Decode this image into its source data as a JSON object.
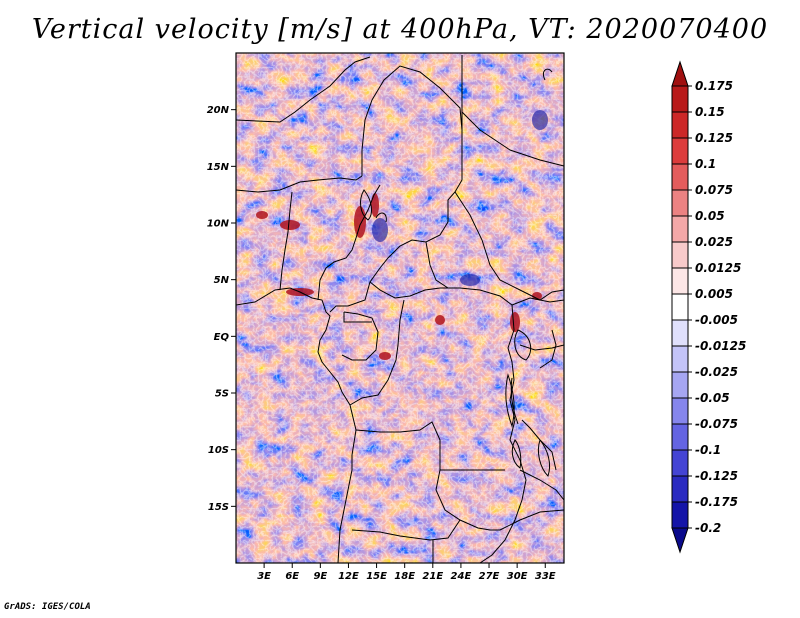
{
  "title": "Vertical velocity [m/s] at 400hPa, VT: 2020070400",
  "credit": "GrADS: IGES/COLA",
  "map": {
    "lon_range": [
      0,
      35
    ],
    "lat_range": [
      -20,
      25
    ],
    "lon_ticks": [
      {
        "value": 3,
        "label": "3E"
      },
      {
        "value": 6,
        "label": "6E"
      },
      {
        "value": 9,
        "label": "9E"
      },
      {
        "value": 12,
        "label": "12E"
      },
      {
        "value": 15,
        "label": "15E"
      },
      {
        "value": 18,
        "label": "18E"
      },
      {
        "value": 21,
        "label": "21E"
      },
      {
        "value": 24,
        "label": "24E"
      },
      {
        "value": 27,
        "label": "27E"
      },
      {
        "value": 30,
        "label": "30E"
      },
      {
        "value": 33,
        "label": "33E"
      }
    ],
    "lat_ticks": [
      {
        "value": 20,
        "label": "20N"
      },
      {
        "value": 15,
        "label": "15N"
      },
      {
        "value": 10,
        "label": "10N"
      },
      {
        "value": 5,
        "label": "5N"
      },
      {
        "value": 0,
        "label": "EQ"
      },
      {
        "value": -5,
        "label": "5S"
      },
      {
        "value": -10,
        "label": "10S"
      },
      {
        "value": -15,
        "label": "15S"
      }
    ]
  },
  "colorbar": {
    "labels": [
      "0.175",
      "0.15",
      "0.125",
      "0.1",
      "0.075",
      "0.05",
      "0.025",
      "0.0125",
      "0.005",
      "-0.005",
      "-0.0125",
      "-0.025",
      "-0.05",
      "-0.075",
      "-0.1",
      "-0.125",
      "-0.175",
      "-0.2"
    ],
    "colors": [
      "#a01010",
      "#b81a1a",
      "#cc2828",
      "#dc3c3c",
      "#e45c5c",
      "#ec8282",
      "#f4a8a8",
      "#f8caca",
      "#fce6e6",
      "#ffffff",
      "#e0e0fc",
      "#c4c4f8",
      "#a6a6f2",
      "#8686ec",
      "#6464e2",
      "#4444d4",
      "#2a2ac0",
      "#1414a8",
      "#0a0a8c"
    ]
  }
}
